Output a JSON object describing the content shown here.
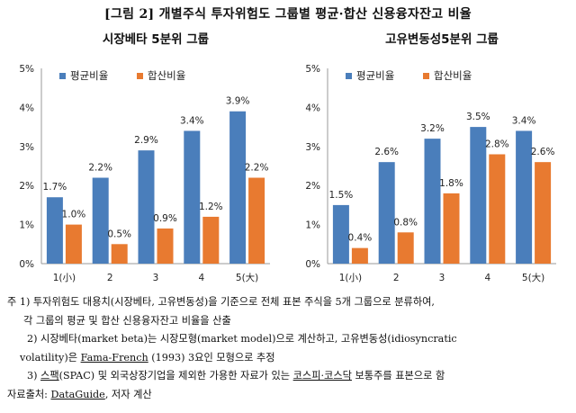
{
  "figure": {
    "title": "[그림 2] 개별주식 투자위험도 그룹별 평균·합산 신용융자잔고 비율"
  },
  "chart_data": [
    {
      "type": "bar",
      "title": "시장베타 5분위 그룹",
      "categories": [
        "1(小)",
        "2",
        "3",
        "4",
        "5(大)"
      ],
      "series": [
        {
          "name": "평균비율",
          "values": [
            1.7,
            2.2,
            2.9,
            3.4,
            3.9
          ],
          "labels": [
            "1.7%",
            "2.2%",
            "2.9%",
            "3.4%",
            "3.9%"
          ]
        },
        {
          "name": "합산비율",
          "values": [
            1.0,
            0.5,
            0.9,
            1.2,
            2.2
          ],
          "labels": [
            "1.0%",
            "0.5%",
            "0.9%",
            "1.2%",
            "2.2%"
          ]
        }
      ],
      "yticks": [
        "0%",
        "1%",
        "2%",
        "3%",
        "4%",
        "5%"
      ],
      "ylim": [
        0,
        5
      ],
      "grid": false,
      "legend": "top-left",
      "colors": [
        "#4a7ebb",
        "#e87a30"
      ]
    },
    {
      "type": "bar",
      "title": "고유변동성5분위 그룹",
      "categories": [
        "1(小)",
        "2",
        "3",
        "4",
        "5(大)"
      ],
      "series": [
        {
          "name": "평균비율",
          "values": [
            1.5,
            2.6,
            3.2,
            3.5,
            3.4
          ],
          "labels": [
            "1.5%",
            "2.6%",
            "3.2%",
            "3.5%",
            "3.4%"
          ]
        },
        {
          "name": "합산비율",
          "values": [
            0.4,
            0.8,
            1.8,
            2.8,
            2.6
          ],
          "labels": [
            "0.4%",
            "0.8%",
            "1.8%",
            "2.8%",
            "2.6%"
          ]
        }
      ],
      "yticks": [
        "0%",
        "1%",
        "2%",
        "3%",
        "4%",
        "5%"
      ],
      "ylim": [
        0,
        5
      ],
      "grid": false,
      "legend": "top-left",
      "colors": [
        "#4a7ebb",
        "#e87a30"
      ]
    }
  ],
  "notes": {
    "line1": "주  1)  투자위험도 대용치(시장베타, 고유변동성)을 기준으로 전체 표본 주식을 5개 그룹으로 분류하여,",
    "line2": "각 그룹의 평균 및 합산 신용융자잔고 비율을 산출",
    "line3a": "2)  시장베타(market beta)는 시장모형(market model)으로 계산하고, 고유변동성(idiosyncratic",
    "line4a": "volatility)은 ",
    "line4b": "Fama-French",
    "line4c": " (1993) 3요인 모형으로 추정",
    "line5a": "3) ",
    "line5b": "스팩",
    "line5c": "(SPAC) 및 외국상장기업을 제외한 가용한 자료가 있는 ",
    "line5d": "코스피·코스닥",
    "line5e": " 보통주를 표본으로 함",
    "line6a": "자료출처: ",
    "line6b": "DataGuide",
    "line6c": ", 저자 계산"
  }
}
